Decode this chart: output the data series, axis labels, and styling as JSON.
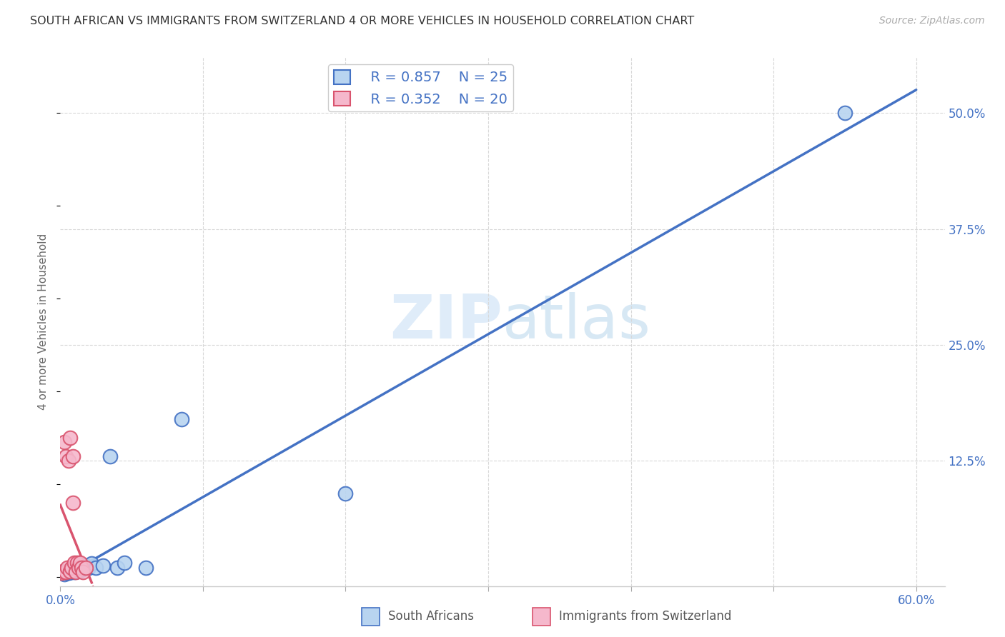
{
  "title": "SOUTH AFRICAN VS IMMIGRANTS FROM SWITZERLAND 4 OR MORE VEHICLES IN HOUSEHOLD CORRELATION CHART",
  "source": "Source: ZipAtlas.com",
  "ylabel": "4 or more Vehicles in Household",
  "xlim": [
    0.0,
    0.62
  ],
  "ylim": [
    -0.01,
    0.56
  ],
  "xticks": [
    0.0,
    0.1,
    0.2,
    0.3,
    0.4,
    0.5,
    0.6
  ],
  "xticklabels": [
    "0.0%",
    "",
    "",
    "",
    "",
    "",
    "60.0%"
  ],
  "yticks_right": [
    0.0,
    0.125,
    0.25,
    0.375,
    0.5
  ],
  "ytick_labels_right": [
    "",
    "12.5%",
    "25.0%",
    "37.5%",
    "50.0%"
  ],
  "watermark_zip": "ZIP",
  "watermark_atlas": "atlas",
  "legend_r1": "R = 0.857",
  "legend_n1": "N = 25",
  "legend_r2": "R = 0.352",
  "legend_n2": "N = 20",
  "color_blue_fill": "#b8d4f0",
  "color_blue_edge": "#4472c4",
  "color_pink_fill": "#f5b8cc",
  "color_pink_edge": "#d9546e",
  "color_pink_line": "#d9546e",
  "color_dashed": "#c8a0a8",
  "color_grid": "#d8d8d8",
  "south_african_x": [
    0.003,
    0.005,
    0.006,
    0.007,
    0.008,
    0.009,
    0.01,
    0.011,
    0.012,
    0.013,
    0.014,
    0.015,
    0.016,
    0.018,
    0.02,
    0.022,
    0.025,
    0.03,
    0.035,
    0.04,
    0.045,
    0.06,
    0.085,
    0.2,
    0.55
  ],
  "south_african_y": [
    0.003,
    0.004,
    0.004,
    0.005,
    0.005,
    0.006,
    0.005,
    0.007,
    0.006,
    0.007,
    0.007,
    0.008,
    0.009,
    0.012,
    0.01,
    0.014,
    0.01,
    0.012,
    0.13,
    0.01,
    0.015,
    0.01,
    0.17,
    0.09,
    0.5
  ],
  "swiss_x": [
    0.001,
    0.002,
    0.003,
    0.004,
    0.004,
    0.005,
    0.006,
    0.007,
    0.007,
    0.008,
    0.009,
    0.009,
    0.01,
    0.011,
    0.012,
    0.013,
    0.014,
    0.015,
    0.016,
    0.018
  ],
  "swiss_y": [
    0.004,
    0.006,
    0.145,
    0.005,
    0.13,
    0.01,
    0.125,
    0.006,
    0.15,
    0.01,
    0.08,
    0.13,
    0.015,
    0.005,
    0.015,
    0.01,
    0.015,
    0.01,
    0.005,
    0.01
  ],
  "background_color": "#ffffff"
}
